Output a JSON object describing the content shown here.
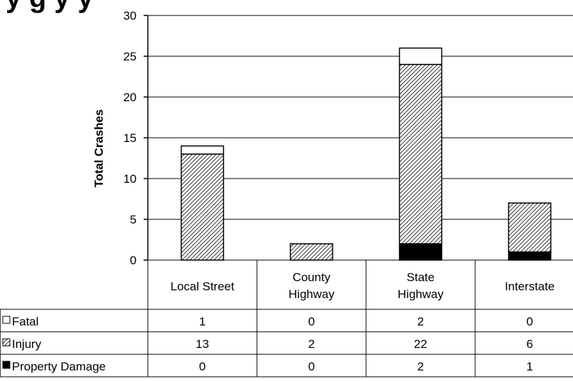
{
  "chart_data": {
    "type": "bar",
    "stacked": true,
    "title_fragment": "y g y y",
    "ylabel": "Total Crashes",
    "ylim": [
      0,
      30
    ],
    "yticks": [
      0,
      5,
      10,
      15,
      20,
      25,
      30
    ],
    "categories": [
      "Local Street",
      "County Highway",
      "State Highway",
      "Interstate"
    ],
    "category_lines": [
      [
        "Local Street"
      ],
      [
        "County",
        "Highway"
      ],
      [
        "State",
        "Highway"
      ],
      [
        "Interstate"
      ]
    ],
    "series": [
      {
        "name": "Property Damage",
        "values": [
          0,
          0,
          2,
          1
        ],
        "pattern": "solid-black",
        "legend_symbol": "■"
      },
      {
        "name": "Injury",
        "values": [
          13,
          2,
          22,
          6
        ],
        "pattern": "diagonal-hatch",
        "legend_symbol": "▧"
      },
      {
        "name": "Fatal",
        "values": [
          1,
          0,
          2,
          0
        ],
        "pattern": "white",
        "legend_symbol": "□"
      }
    ],
    "table_row_order": [
      "Fatal",
      "Injury",
      "Property Damage"
    ],
    "grid": true,
    "legend": "data-table-left",
    "colors": {
      "property_damage": "#000000",
      "injury_hatch": "#000000",
      "fatal": "#ffffff",
      "gridline": "#000000"
    }
  }
}
